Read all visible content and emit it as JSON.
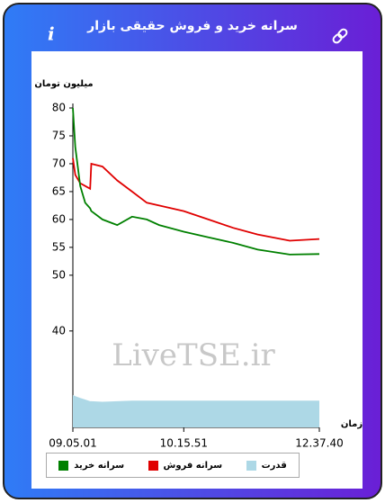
{
  "header": {
    "title": "سرانه خرید و فروش حقیقی بازار"
  },
  "chart_data": {
    "type": "line",
    "y_label": "میلیون تومان",
    "x_label": "زمان",
    "annotation": "LiveTSE.ir",
    "x": [
      0,
      1,
      3,
      5,
      7,
      7.5,
      12,
      18,
      24,
      30,
      35,
      45,
      55,
      65,
      75,
      88,
      100
    ],
    "series": [
      {
        "name": "سرانه خرید",
        "color": "#008000",
        "values": [
          80,
          73,
          66,
          63,
          62,
          61.5,
          60,
          59,
          60.5,
          60,
          59,
          57.8,
          56.8,
          55.8,
          54.6,
          53.7,
          53.8
        ]
      },
      {
        "name": "سرانه فروش",
        "color": "#e00000",
        "values": [
          71,
          68,
          66.5,
          66,
          65.5,
          70,
          69.5,
          67,
          65,
          63,
          62.5,
          61.5,
          60,
          58.5,
          57.3,
          56.2,
          56.5
        ]
      },
      {
        "name": "قدرت",
        "color": "#add8e6",
        "fill": true,
        "values": [
          28.5,
          28.3,
          28,
          27.7,
          27.4,
          27.4,
          27.3,
          27.4,
          27.5,
          27.5,
          27.5,
          27.5,
          27.5,
          27.5,
          27.5,
          27.5,
          27.5
        ]
      }
    ],
    "xlim": [
      0,
      100
    ],
    "xticks": [
      {
        "value": 0,
        "label": "09.05.01"
      },
      {
        "value": 45,
        "label": "10.15.51"
      },
      {
        "value": 100,
        "label": "12.37.40"
      }
    ],
    "ylim": [
      22.7,
      80
    ],
    "yticks": [
      40,
      50,
      55,
      60,
      65,
      70,
      75,
      80
    ]
  }
}
